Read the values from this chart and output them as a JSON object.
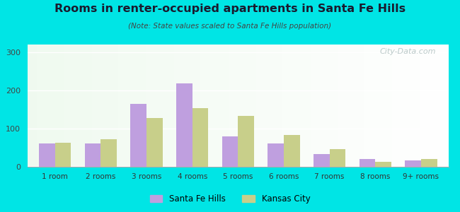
{
  "title": "Rooms in renter-occupied apartments in Santa Fe Hills",
  "subtitle": "(Note: State values scaled to Santa Fe Hills population)",
  "categories": [
    "1 room",
    "2 rooms",
    "3 rooms",
    "4 rooms",
    "5 rooms",
    "6 rooms",
    "7 rooms",
    "8 rooms",
    "9+ rooms"
  ],
  "santa_fe_hills": [
    60,
    60,
    165,
    218,
    78,
    60,
    32,
    20,
    15
  ],
  "kansas_city": [
    62,
    72,
    128,
    153,
    133,
    82,
    45,
    12,
    20
  ],
  "color_sfh": "#bf9fdf",
  "color_kc": "#c8cf8a",
  "ylim": [
    0,
    320
  ],
  "yticks": [
    0,
    100,
    200,
    300
  ],
  "background_outer": "#00e5e5",
  "watermark": "City-Data.com",
  "legend_sfh": "Santa Fe Hills",
  "legend_kc": "Kansas City",
  "bar_width": 0.35
}
